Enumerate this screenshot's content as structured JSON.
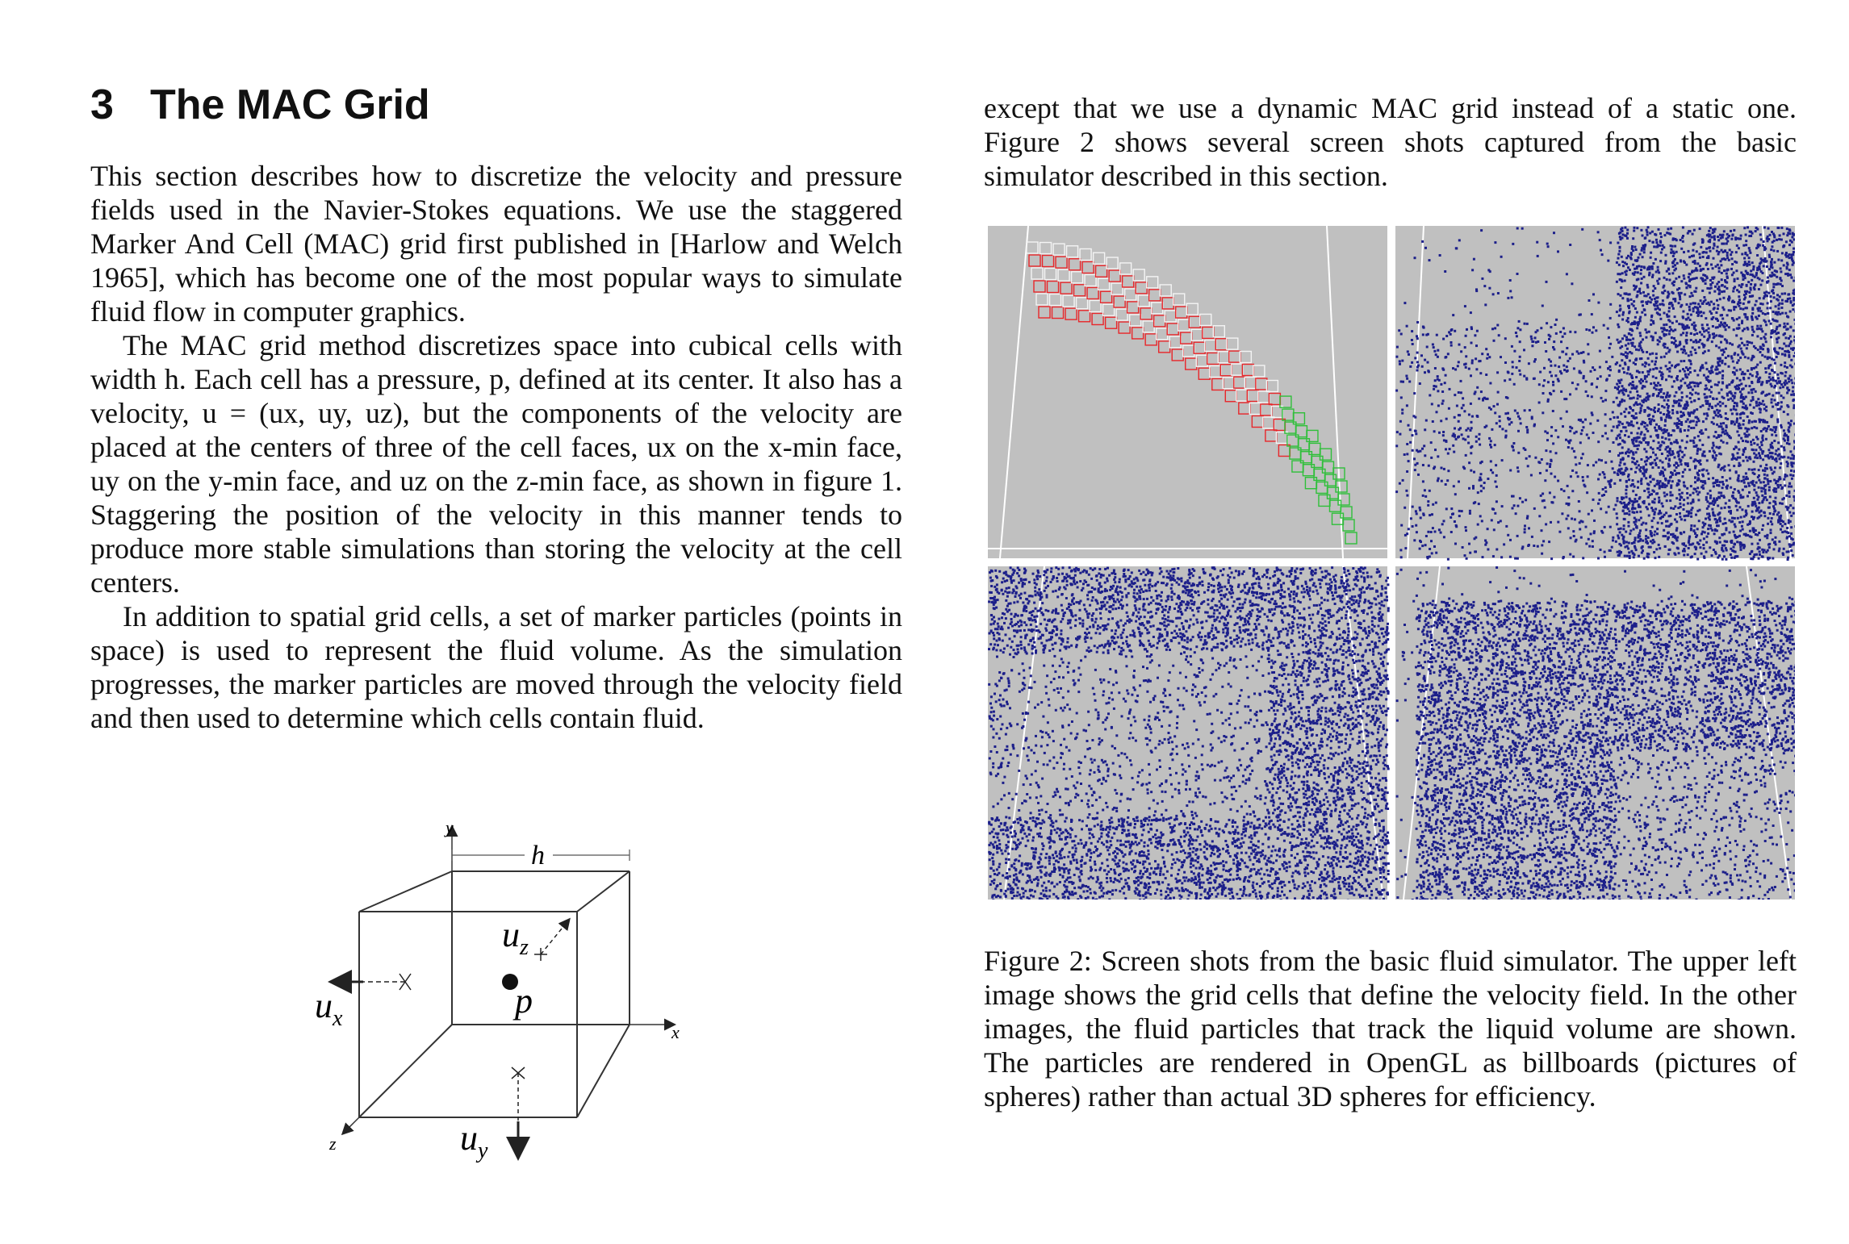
{
  "section": {
    "number": "3",
    "title": "The MAC Grid"
  },
  "left_column": {
    "paragraphs": [
      "This section describes how to discretize the velocity and pressure fields used in the Navier-Stokes equations.  We use the staggered Marker And Cell (MAC) grid first published in [Harlow and Welch 1965], which has become one of the most popular ways to simulate fluid flow in computer graphics.",
      "The MAC grid method discretizes space into cubical cells with width h. Each cell has a pressure, p, defined at its center. It also has a velocity, u = (ux, uy, uz), but the components of the velocity are placed at the centers of three of the cell faces, ux on the x-min face, uy on the y-min face, and uz on the z-min face, as shown in figure 1.  Staggering the position of the velocity in this manner tends to produce more stable simulations than storing the velocity at the cell centers.",
      "In addition to spatial grid cells, a set of marker particles (points in space) is used to represent the fluid volume. As the simulation progresses, the marker particles are moved through the velocity field and then used to determine which cells contain fluid."
    ]
  },
  "right_column": {
    "intro": "except that we use a dynamic MAC grid instead of a static one. Figure 2 shows several screen shots captured from the basic simulator described in this section."
  },
  "figure1": {
    "labels": {
      "y_axis": "y",
      "x_axis": "x",
      "z_axis": "z",
      "width": "h",
      "pressure": "p",
      "ux": "u",
      "ux_sub": "x",
      "uy": "u",
      "uy_sub": "y",
      "uz": "u",
      "uz_sub": "z"
    }
  },
  "figure2": {
    "caption": "Figure 2:  Screen shots from the basic fluid simulator.  The upper left image shows the grid cells that define the velocity field.  In the other images, the fluid particles that track the liquid volume are shown.  The particles are rendered in OpenGL as billboards (pictures of spheres) rather than actual 3D spheres for efficiency.",
    "colors": {
      "background": "#c0c0c0",
      "particles": "#1c1f8a",
      "grid_red": "#e8262a",
      "grid_green": "#2fbf3a",
      "grid_white": "#f4f4f4"
    }
  }
}
